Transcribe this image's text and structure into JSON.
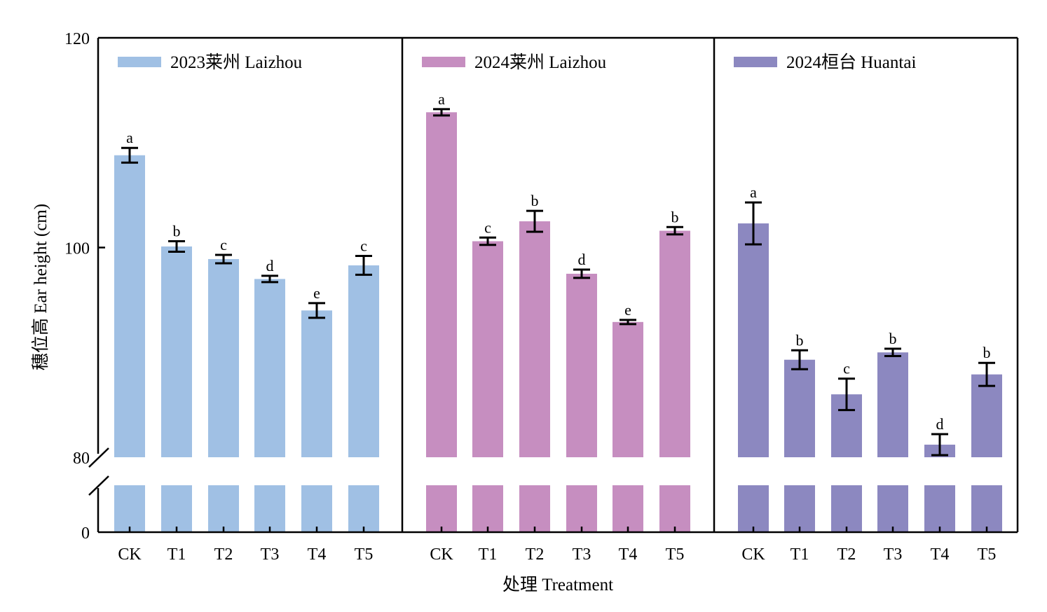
{
  "chart_data": {
    "type": "bar",
    "title": "",
    "xlabel": "处理 Treatment",
    "ylabel": "穗位高 Ear height (cm)",
    "ylim": [
      0,
      120
    ],
    "y_axis_break": [
      0,
      80
    ],
    "yticks": [
      0,
      80,
      100,
      120
    ],
    "grid": false,
    "legend_placement": "top-left of each panel",
    "categories": [
      "CK",
      "T1",
      "T2",
      "T3",
      "T4",
      "T5"
    ],
    "panels": [
      {
        "name": "2023莱州 Laizhou",
        "color": "#a0c0e4",
        "values": [
          108.8,
          100.1,
          98.9,
          97.0,
          94.0,
          98.3
        ],
        "errors": [
          0.7,
          0.5,
          0.4,
          0.3,
          0.7,
          0.9
        ],
        "significance": [
          "a",
          "b",
          "c",
          "d",
          "e",
          "c"
        ]
      },
      {
        "name": "2024莱州 Laizhou",
        "color": "#c68ec0",
        "values": [
          112.9,
          100.6,
          102.5,
          97.5,
          92.9,
          101.6
        ],
        "errors": [
          0.3,
          0.35,
          1.0,
          0.4,
          0.2,
          0.35
        ],
        "significance": [
          "a",
          "c",
          "b",
          "d",
          "e",
          "b"
        ]
      },
      {
        "name": "2024桓台 Huantai",
        "color": "#8c88c0",
        "values": [
          102.3,
          89.3,
          86.0,
          90.0,
          81.2,
          87.9
        ],
        "errors": [
          2.0,
          0.9,
          1.5,
          0.35,
          1.0,
          1.1
        ],
        "significance": [
          "a",
          "b",
          "c",
          "b",
          "d",
          "b"
        ]
      }
    ]
  }
}
